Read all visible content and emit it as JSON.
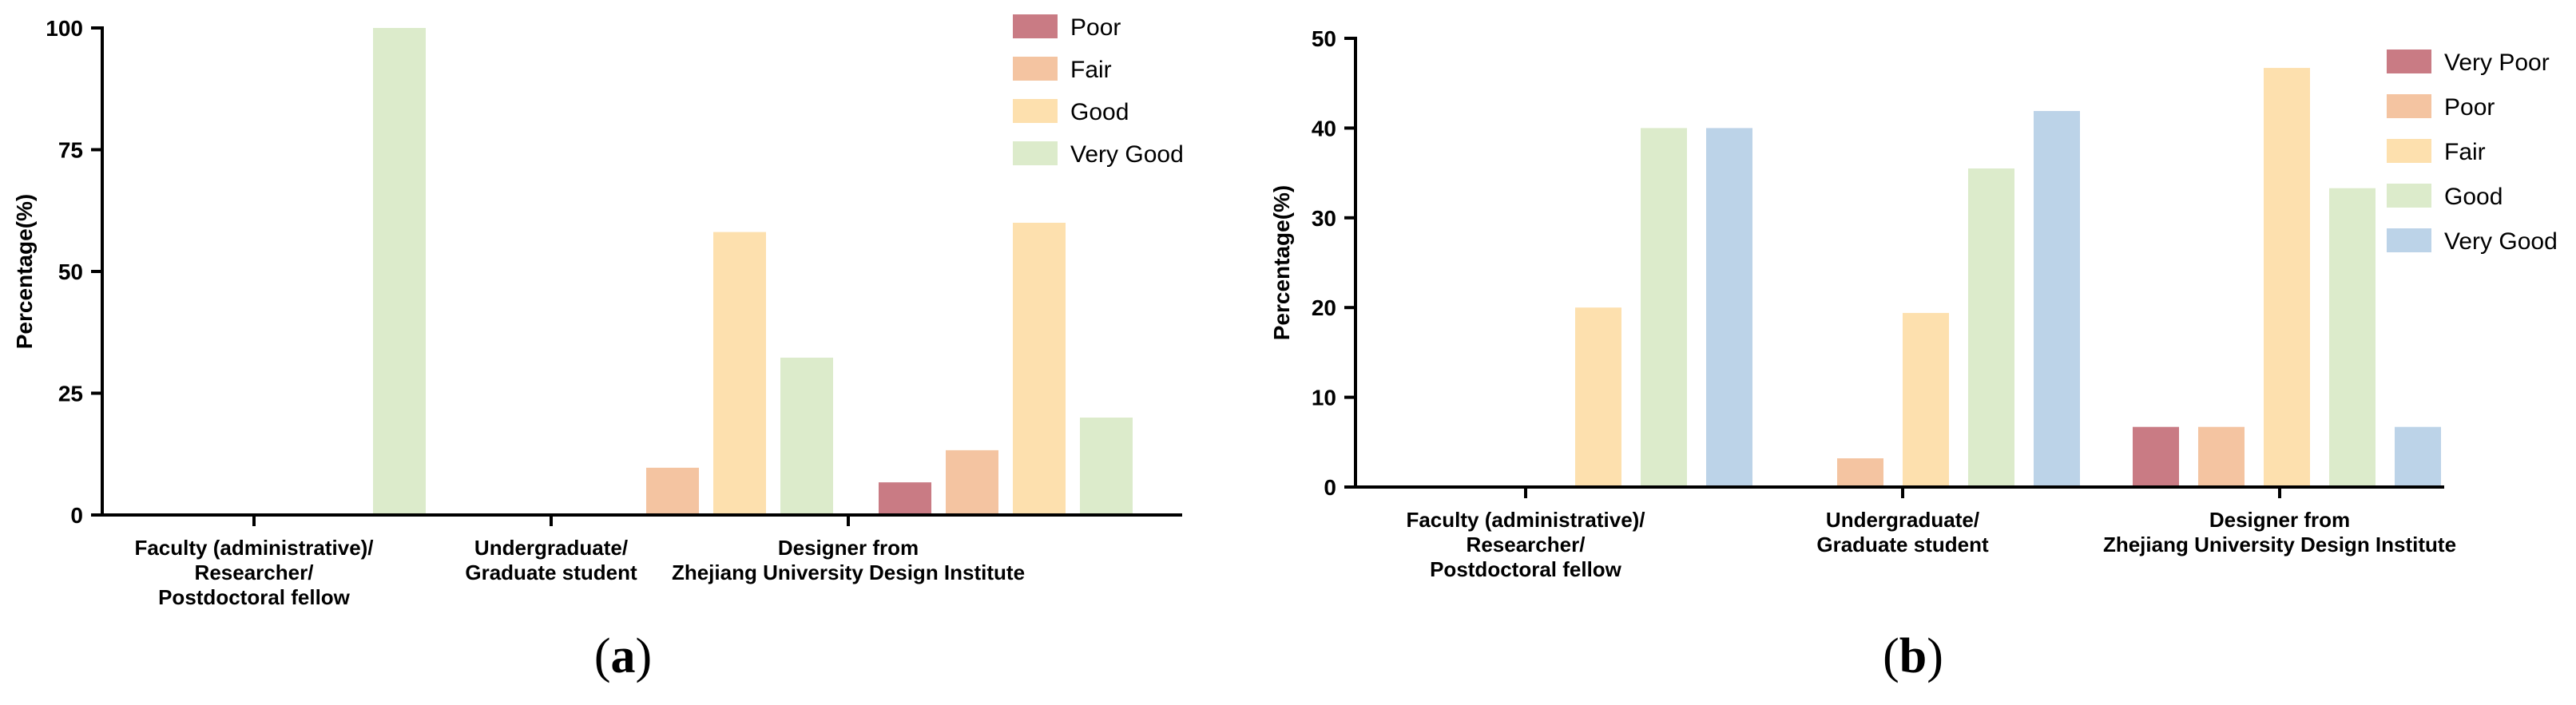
{
  "chart_data": [
    {
      "type": "bar",
      "panel_label": "a",
      "caption_open": "(",
      "caption_close": ")",
      "ylabel": "Percentage(%)",
      "ylim": [
        0,
        100
      ],
      "yticks": [
        0,
        25,
        50,
        75,
        100
      ],
      "grid": false,
      "legend_position": "top-right",
      "categories": [
        [
          "Faculty (administrative)/",
          "Researcher/",
          "Postdoctoral fellow"
        ],
        [
          "Undergraduate/",
          "Graduate student"
        ],
        [
          "Designer from",
          "Zhejiang University Design Institute"
        ]
      ],
      "series": [
        {
          "name": "Poor",
          "color": "#c97b84",
          "values": [
            0,
            0,
            6.7
          ]
        },
        {
          "name": "Fair",
          "color": "#f4c4a1",
          "values": [
            0,
            9.7,
            13.3
          ]
        },
        {
          "name": "Good",
          "color": "#fde0ae",
          "values": [
            0,
            58.1,
            60
          ]
        },
        {
          "name": "Very Good",
          "color": "#dcebcb",
          "values": [
            100,
            32.3,
            20
          ]
        }
      ]
    },
    {
      "type": "bar",
      "panel_label": "b",
      "caption_open": "(",
      "caption_close": ")",
      "ylabel": "Percentage(%)",
      "ylim": [
        0,
        50
      ],
      "yticks": [
        0,
        10,
        20,
        30,
        40,
        50
      ],
      "grid": false,
      "legend_position": "top-right",
      "categories": [
        [
          "Faculty (administrative)/",
          "Researcher/",
          "Postdoctoral fellow"
        ],
        [
          "Undergraduate/",
          "Graduate student"
        ],
        [
          "Designer from",
          "Zhejiang University Design Institute"
        ]
      ],
      "series": [
        {
          "name": "Very Poor",
          "color": "#c97b84",
          "values": [
            0,
            0,
            6.7
          ]
        },
        {
          "name": "Poor",
          "color": "#f4c4a1",
          "values": [
            0,
            3.2,
            6.7
          ]
        },
        {
          "name": "Fair",
          "color": "#fde0ae",
          "values": [
            20,
            19.4,
            46.7
          ]
        },
        {
          "name": "Good",
          "color": "#dcebcb",
          "values": [
            40,
            35.5,
            33.3
          ]
        },
        {
          "name": "Very Good",
          "color": "#bcd3e8",
          "values": [
            40,
            41.9,
            6.7
          ]
        }
      ]
    }
  ]
}
